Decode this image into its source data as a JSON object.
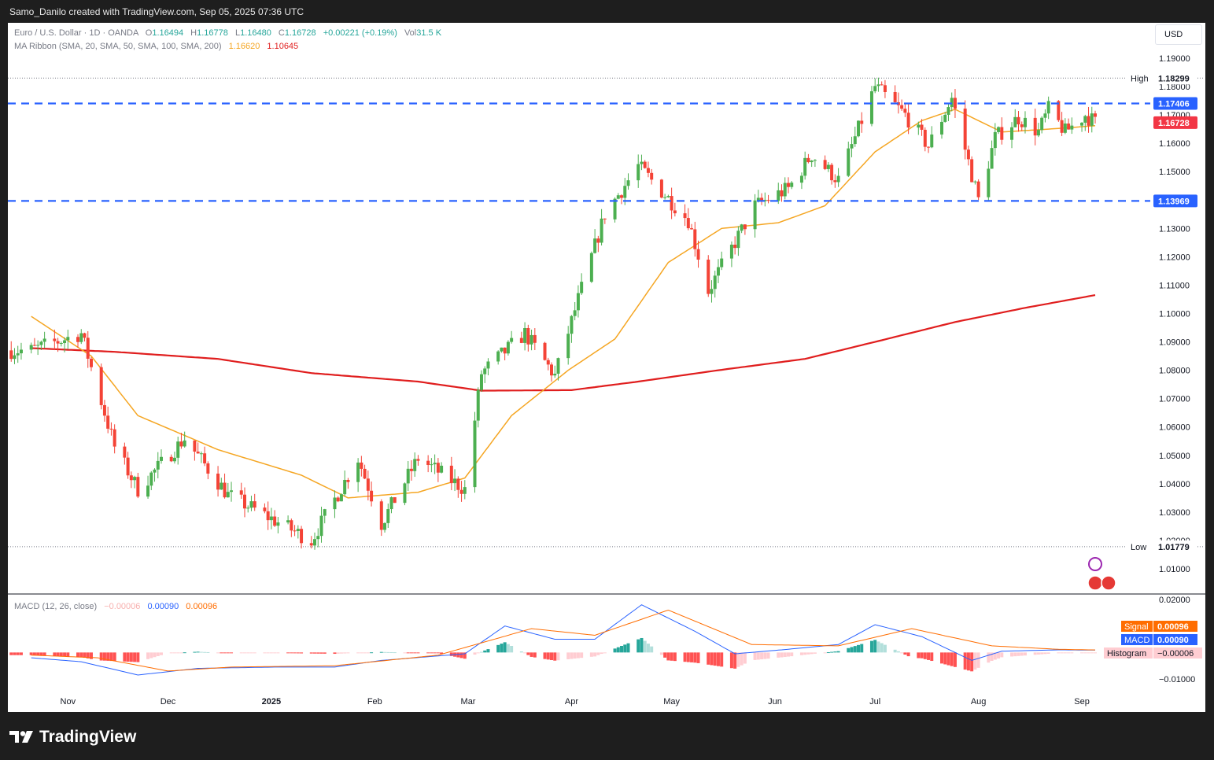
{
  "header": {
    "attribution": "Samo_Danilo created with TradingView.com, Sep 05, 2025 07:36 UTC"
  },
  "legend": {
    "symbol": "Euro / U.S. Dollar · 1D · OANDA",
    "o_label": "O",
    "o_value": "1.16494",
    "h_label": "H",
    "h_value": "1.16778",
    "l_label": "L",
    "l_value": "1.16480",
    "c_label": "C",
    "c_value": "1.16728",
    "change": "+0.00221 (+0.19%)",
    "vol_label": "Vol",
    "vol_value": "31.5 K",
    "ma_name": "MA Ribbon (SMA, 20, SMA, 50, SMA, 100, SMA, 200)",
    "ma_val1": "1.16620",
    "ma_val2": "1.10645",
    "macd_name": "MACD (12, 26, close)",
    "macd_hist": "−0.00006",
    "macd_macd": "0.00090",
    "macd_signal": "0.00096"
  },
  "currency_button": "USD",
  "brand": "TradingView",
  "colors": {
    "up": "#26a69a",
    "down": "#ef5350",
    "candle_up": "#4caf50",
    "candle_down": "#f44336",
    "ma20": "#f5a623",
    "ma200": "#e01e1e",
    "level": "#2962ff",
    "macd": "#2962ff",
    "signal": "#ff6d00"
  },
  "chart_data": {
    "type": "candlestick",
    "price_ticks": [
      "1.19000",
      "1.18000",
      "1.17000",
      "1.16000",
      "1.15000",
      "1.14000",
      "1.13000",
      "1.12000",
      "1.11000",
      "1.10000",
      "1.09000",
      "1.08000",
      "1.07000",
      "1.06000",
      "1.05000",
      "1.04000",
      "1.03000",
      "1.02000",
      "1.01000"
    ],
    "ylim": [
      1.0055,
      1.1965
    ],
    "time_labels": [
      "Nov",
      "Dec",
      "2025",
      "Feb",
      "Mar",
      "Apr",
      "May",
      "Jun",
      "Jul",
      "Aug",
      "Sep"
    ],
    "tags": {
      "high_label": "High",
      "high_value": "1.18299",
      "low_label": "Low",
      "low_value": "1.01779",
      "resistance": "1.17406",
      "support": "1.13969",
      "last": "1.16728"
    },
    "levels": [
      1.17406,
      1.13969
    ],
    "keypoints": [
      [
        "2024-10-21",
        1.087
      ],
      [
        "2024-11-05",
        1.093
      ],
      [
        "2024-11-15",
        1.053
      ],
      [
        "2024-11-22",
        1.038
      ],
      [
        "2024-12-06",
        1.056
      ],
      [
        "2024-12-19",
        1.036
      ],
      [
        "2025-01-02",
        1.027
      ],
      [
        "2025-01-13",
        1.02
      ],
      [
        "2025-01-27",
        1.049
      ],
      [
        "2025-02-03",
        1.026
      ],
      [
        "2025-02-14",
        1.049
      ],
      [
        "2025-02-28",
        1.038
      ],
      [
        "2025-03-05",
        1.079
      ],
      [
        "2025-03-18",
        1.093
      ],
      [
        "2025-03-27",
        1.078
      ],
      [
        "2025-04-03",
        1.105
      ],
      [
        "2025-04-11",
        1.135
      ],
      [
        "2025-04-21",
        1.152
      ],
      [
        "2025-05-06",
        1.133
      ],
      [
        "2025-05-12",
        1.108
      ],
      [
        "2025-05-26",
        1.138
      ],
      [
        "2025-06-05",
        1.144
      ],
      [
        "2025-06-12",
        1.156
      ],
      [
        "2025-06-20",
        1.147
      ],
      [
        "2025-07-01",
        1.18
      ],
      [
        "2025-07-10",
        1.17
      ],
      [
        "2025-07-17",
        1.159
      ],
      [
        "2025-07-24",
        1.176
      ],
      [
        "2025-08-01",
        1.14
      ],
      [
        "2025-08-06",
        1.162
      ],
      [
        "2025-08-13",
        1.169
      ],
      [
        "2025-08-19",
        1.164
      ],
      [
        "2025-08-22",
        1.172
      ],
      [
        "2025-08-27",
        1.164
      ],
      [
        "2025-09-02",
        1.17
      ],
      [
        "2025-09-05",
        1.1673
      ]
    ],
    "ma20_points": [
      [
        "2024-10-21",
        1.099
      ],
      [
        "2024-11-08",
        1.085
      ],
      [
        "2024-11-22",
        1.064
      ],
      [
        "2024-12-16",
        1.052
      ],
      [
        "2025-01-10",
        1.043
      ],
      [
        "2025-01-24",
        1.035
      ],
      [
        "2025-02-14",
        1.037
      ],
      [
        "2025-02-28",
        1.042
      ],
      [
        "2025-03-14",
        1.064
      ],
      [
        "2025-03-31",
        1.08
      ],
      [
        "2025-04-14",
        1.091
      ],
      [
        "2025-04-30",
        1.118
      ],
      [
        "2025-05-16",
        1.13
      ],
      [
        "2025-06-02",
        1.132
      ],
      [
        "2025-06-16",
        1.138
      ],
      [
        "2025-07-01",
        1.157
      ],
      [
        "2025-07-15",
        1.168
      ],
      [
        "2025-07-25",
        1.172
      ],
      [
        "2025-08-08",
        1.164
      ],
      [
        "2025-08-22",
        1.165
      ],
      [
        "2025-09-05",
        1.1662
      ]
    ],
    "ma200_points": [
      [
        "2024-10-21",
        1.0878
      ],
      [
        "2024-11-15",
        1.0865
      ],
      [
        "2024-12-16",
        1.084
      ],
      [
        "2025-01-13",
        1.079
      ],
      [
        "2025-02-14",
        1.076
      ],
      [
        "2025-03-05",
        1.0728
      ],
      [
        "2025-04-01",
        1.073
      ],
      [
        "2025-04-21",
        1.076
      ],
      [
        "2025-05-15",
        1.08
      ],
      [
        "2025-06-10",
        1.084
      ],
      [
        "2025-07-01",
        1.09
      ],
      [
        "2025-07-25",
        1.097
      ],
      [
        "2025-08-15",
        1.102
      ],
      [
        "2025-09-05",
        1.1065
      ]
    ],
    "macd_ticks": [
      "0.02000",
      "−0.01000"
    ],
    "macd_ylim": [
      -0.0132,
      0.0222
    ],
    "macd_tags": {
      "signal_label": "Signal",
      "signal_value": "0.00096",
      "macd_label": "MACD",
      "macd_value": "0.00090",
      "hist_label": "Histogram",
      "hist_value": "−0.00006"
    },
    "macd_points": [
      [
        "2024-10-21",
        -0.002
      ],
      [
        "2024-11-05",
        -0.0035
      ],
      [
        "2024-11-22",
        -0.0085
      ],
      [
        "2024-12-10",
        -0.006
      ],
      [
        "2025-01-03",
        -0.0055
      ],
      [
        "2025-01-20",
        -0.0055
      ],
      [
        "2025-02-03",
        -0.003
      ],
      [
        "2025-02-28",
        -0.0005
      ],
      [
        "2025-03-12",
        0.01
      ],
      [
        "2025-03-27",
        0.005
      ],
      [
        "2025-04-08",
        0.005
      ],
      [
        "2025-04-22",
        0.018
      ],
      [
        "2025-05-08",
        0.008
      ],
      [
        "2025-05-20",
        -0.0005
      ],
      [
        "2025-06-03",
        0.001
      ],
      [
        "2025-06-20",
        0.003
      ],
      [
        "2025-07-01",
        0.0105
      ],
      [
        "2025-07-15",
        0.006
      ],
      [
        "2025-07-30",
        -0.003
      ],
      [
        "2025-08-08",
        0.0005
      ],
      [
        "2025-08-25",
        0.001
      ],
      [
        "2025-09-05",
        0.0009
      ]
    ],
    "signal_points": [
      [
        "2024-10-21",
        -0.001
      ],
      [
        "2024-11-10",
        -0.002
      ],
      [
        "2024-12-01",
        -0.007
      ],
      [
        "2024-12-20",
        -0.0055
      ],
      [
        "2025-01-20",
        -0.005
      ],
      [
        "2025-02-20",
        -0.001
      ],
      [
        "2025-03-20",
        0.009
      ],
      [
        "2025-04-08",
        0.0065
      ],
      [
        "2025-04-30",
        0.016
      ],
      [
        "2025-05-25",
        0.003
      ],
      [
        "2025-06-20",
        0.0025
      ],
      [
        "2025-07-12",
        0.009
      ],
      [
        "2025-08-05",
        0.0025
      ],
      [
        "2025-08-25",
        0.0012
      ],
      [
        "2025-09-05",
        0.00096
      ]
    ]
  }
}
